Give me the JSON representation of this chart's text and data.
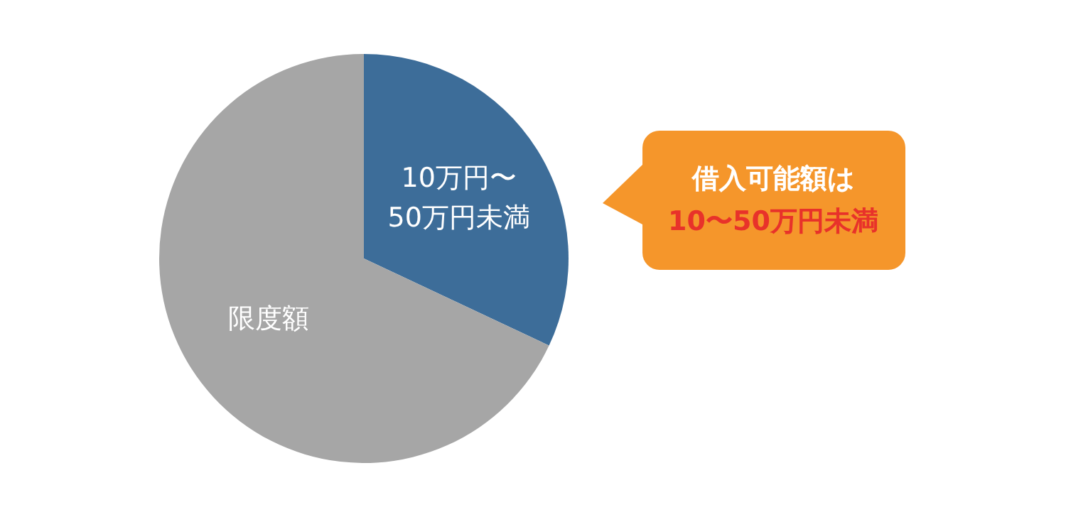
{
  "chart_data": {
    "type": "pie",
    "categories": [
      "10万円〜\n50万円未満",
      "限度額"
    ],
    "values": [
      32,
      68
    ],
    "colors": [
      "#3d6d99",
      "#a6a6a6"
    ],
    "annotations": [
      "借入可能額は",
      "10〜50万円未満"
    ]
  }
}
